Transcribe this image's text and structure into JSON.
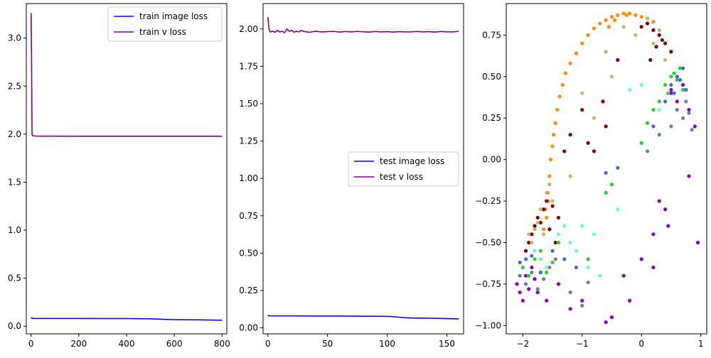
{
  "chart_data": [
    {
      "type": "line",
      "title": "",
      "xlabel": "",
      "ylabel": "",
      "xlim": [
        -20,
        820
      ],
      "ylim": [
        -0.08,
        3.36
      ],
      "xticks": [
        0,
        200,
        400,
        600,
        800
      ],
      "xtick_labels": [
        "0",
        "200",
        "400",
        "600",
        "800"
      ],
      "yticks": [
        0.0,
        0.5,
        1.0,
        1.5,
        2.0,
        2.5,
        3.0
      ],
      "ytick_labels": [
        "0.0",
        "0.5",
        "1.0",
        "1.5",
        "2.0",
        "2.5",
        "3.0"
      ],
      "legend_position": "top-right",
      "grid": false,
      "series": [
        {
          "name": "train image loss",
          "color": "#0000ff",
          "x": [
            0,
            5,
            10,
            50,
            100,
            200,
            300,
            400,
            450,
            500,
            530,
            560,
            600,
            650,
            700,
            750,
            800
          ],
          "y": [
            0.09,
            0.082,
            0.08,
            0.08,
            0.08,
            0.08,
            0.079,
            0.079,
            0.078,
            0.077,
            0.074,
            0.07,
            0.068,
            0.067,
            0.066,
            0.064,
            0.062
          ]
        },
        {
          "name": "train v loss",
          "color": "#800080",
          "x": [
            0,
            2,
            4,
            6,
            10,
            20,
            50,
            100,
            200,
            300,
            400,
            500,
            600,
            700,
            800
          ],
          "y": [
            3.26,
            2.8,
            2.0,
            1.985,
            1.982,
            1.98,
            1.979,
            1.979,
            1.978,
            1.978,
            1.978,
            1.978,
            1.978,
            1.978,
            1.978
          ]
        }
      ]
    },
    {
      "type": "line",
      "title": "",
      "xlabel": "",
      "ylabel": "",
      "xlim": [
        -4,
        164
      ],
      "ylim": [
        -0.04,
        2.17
      ],
      "xticks": [
        0,
        50,
        100,
        150
      ],
      "xtick_labels": [
        "0",
        "50",
        "100",
        "150"
      ],
      "yticks": [
        0.0,
        0.25,
        0.5,
        0.75,
        1.0,
        1.25,
        1.5,
        1.75,
        2.0
      ],
      "ytick_labels": [
        "0.00",
        "0.25",
        "0.50",
        "0.75",
        "1.00",
        "1.25",
        "1.50",
        "1.75",
        "2.00"
      ],
      "legend_position": "center-right",
      "grid": false,
      "series": [
        {
          "name": "test image loss",
          "color": "#0000ff",
          "x": [
            0,
            1,
            5,
            20,
            40,
            60,
            80,
            100,
            105,
            110,
            115,
            120,
            130,
            140,
            150,
            160
          ],
          "y": [
            0.085,
            0.08,
            0.08,
            0.08,
            0.079,
            0.079,
            0.078,
            0.077,
            0.075,
            0.071,
            0.068,
            0.066,
            0.065,
            0.064,
            0.062,
            0.06
          ]
        },
        {
          "name": "test v loss",
          "color": "#800080",
          "x": [
            0,
            1,
            2,
            4,
            6,
            8,
            10,
            12,
            14,
            16,
            18,
            20,
            22,
            24,
            26,
            28,
            30,
            35,
            40,
            45,
            50,
            55,
            60,
            65,
            70,
            75,
            80,
            85,
            90,
            95,
            100,
            105,
            110,
            115,
            120,
            125,
            130,
            135,
            140,
            145,
            150,
            155,
            160
          ],
          "y": [
            2.08,
            2.0,
            1.98,
            1.985,
            1.978,
            1.99,
            1.98,
            1.985,
            1.975,
            2.0,
            1.985,
            1.99,
            1.978,
            1.985,
            1.98,
            1.99,
            1.983,
            1.978,
            1.985,
            1.98,
            1.982,
            1.984,
            1.979,
            1.983,
            1.98,
            1.984,
            1.981,
            1.979,
            1.983,
            1.98,
            1.982,
            1.979,
            1.982,
            1.98,
            1.981,
            1.983,
            1.98,
            1.982,
            1.979,
            1.983,
            1.981,
            1.98,
            1.984
          ]
        }
      ]
    },
    {
      "type": "scatter",
      "title": "",
      "xlabel": "",
      "ylabel": "",
      "xlim": [
        -2.28,
        1.1
      ],
      "ylim": [
        -1.05,
        0.94
      ],
      "xticks": [
        -2,
        -1,
        0,
        1
      ],
      "xtick_labels": [
        "−2",
        "−1",
        "0",
        "1"
      ],
      "yticks": [
        -1.0,
        -0.75,
        -0.5,
        -0.25,
        0.0,
        0.25,
        0.5,
        0.75
      ],
      "ytick_labels": [
        "−1.00",
        "−0.75",
        "−0.50",
        "−0.25",
        "0.00",
        "0.25",
        "0.50",
        "0.75"
      ],
      "grid": false,
      "series": [
        {
          "color": "#ff8c00",
          "x": [
            -1.6,
            -1.62,
            -1.58,
            -1.55,
            -1.53,
            -1.5,
            -1.48,
            -1.45,
            -1.42,
            -1.38,
            -1.33,
            -1.28,
            -1.2,
            -1.1,
            -1.0,
            -0.9,
            -0.8,
            -0.7,
            -0.6,
            -0.5,
            -0.4,
            -0.3,
            -0.2,
            -0.1,
            0.0,
            0.1,
            0.2,
            -1.65,
            -1.57,
            -0.45,
            -0.55,
            -0.25
          ],
          "y": [
            -0.35,
            -0.3,
            -0.2,
            -0.1,
            0.0,
            0.08,
            0.15,
            0.22,
            0.3,
            0.38,
            0.45,
            0.52,
            0.58,
            0.64,
            0.7,
            0.75,
            0.79,
            0.82,
            0.84,
            0.86,
            0.87,
            0.88,
            0.88,
            0.87,
            0.86,
            0.85,
            0.83,
            -0.42,
            -0.25,
            0.84,
            0.8,
            0.87
          ]
        },
        {
          "color": "#800000",
          "x": [
            -1.95,
            -1.9,
            -1.85,
            -1.8,
            -1.75,
            -1.7,
            -1.65,
            -1.6,
            -1.5,
            -1.4,
            -1.2,
            -1.0,
            -0.8,
            -0.6,
            -0.4,
            0.0,
            0.1,
            0.2,
            0.3,
            0.4,
            0.5,
            0.35,
            0.25,
            0.15,
            -1.3,
            -0.9,
            -0.65,
            -1.55,
            -1.45
          ],
          "y": [
            -0.55,
            -0.5,
            -0.45,
            -0.4,
            -0.35,
            -0.38,
            -0.3,
            -0.25,
            -0.28,
            -0.35,
            0.15,
            0.3,
            0.05,
            0.2,
            0.6,
            0.8,
            0.82,
            0.78,
            0.75,
            0.7,
            0.65,
            0.72,
            0.68,
            0.6,
            0.05,
            0.1,
            0.35,
            -0.42,
            -0.5
          ]
        },
        {
          "color": "#bdb76b",
          "x": [
            -1.9,
            -1.85,
            -1.8,
            -1.75,
            -1.7,
            -1.65,
            -1.6,
            -1.55,
            -1.2,
            -1.0,
            -0.8,
            -0.6,
            -0.3,
            -0.1,
            0.1,
            0.2,
            0.3,
            0.4,
            -1.5,
            -0.5
          ],
          "y": [
            -0.45,
            -0.5,
            -0.42,
            -0.38,
            -0.3,
            -0.45,
            -0.2,
            -0.15,
            -0.1,
            0.4,
            0.25,
            0.65,
            0.8,
            0.75,
            0.85,
            0.7,
            0.78,
            0.6,
            -0.25,
            0.5
          ]
        },
        {
          "color": "#8a00c0",
          "x": [
            -2.1,
            -2.05,
            -2.0,
            -1.95,
            -1.9,
            -1.85,
            -1.8,
            -1.75,
            -1.7,
            -1.6,
            -1.4,
            -1.2,
            -1.0,
            -0.6,
            -0.3,
            -0.2,
            0.0,
            0.2,
            0.4,
            0.5,
            0.6,
            0.7,
            0.8,
            0.9,
            0.95,
            0.6,
            0.5,
            0.3,
            0.8,
            -0.5,
            0.2,
            0.45
          ],
          "y": [
            -0.75,
            -0.8,
            -0.85,
            -0.7,
            -0.78,
            -0.65,
            -0.72,
            -0.8,
            -0.68,
            -0.85,
            -0.75,
            -0.9,
            -0.85,
            -0.98,
            -0.7,
            -0.85,
            -0.6,
            -0.45,
            -0.3,
            0.4,
            0.35,
            0.45,
            0.3,
            0.2,
            -0.5,
            0.5,
            0.42,
            -0.25,
            -0.1,
            -0.95,
            -0.65,
            -0.4
          ]
        },
        {
          "color": "#2ecc2e",
          "x": [
            -2.0,
            -1.9,
            -1.8,
            -1.7,
            -1.6,
            -1.5,
            -1.4,
            -0.9,
            -0.5,
            0.0,
            0.2,
            0.3,
            0.4,
            0.45,
            0.5,
            0.55,
            0.6,
            0.65,
            0.7,
            -0.6,
            0.1
          ],
          "y": [
            -0.65,
            -0.7,
            -0.6,
            -0.55,
            -0.68,
            -0.62,
            -0.5,
            -0.6,
            -0.15,
            0.1,
            0.3,
            0.35,
            0.45,
            0.4,
            0.5,
            0.52,
            0.48,
            0.55,
            0.42,
            -0.2,
            0.22
          ]
        },
        {
          "color": "#4169e1",
          "x": [
            -2.05,
            -1.95,
            -1.85,
            -1.7,
            -1.5,
            -1.3,
            -1.1,
            -0.6,
            -0.4,
            0.2,
            0.4,
            0.5,
            0.55,
            0.6,
            0.65,
            0.7,
            0.75
          ],
          "y": [
            -0.62,
            -0.6,
            -0.58,
            -0.68,
            -0.55,
            -0.6,
            -0.65,
            -0.08,
            -0.05,
            0.2,
            0.35,
            0.45,
            0.4,
            0.5,
            0.48,
            0.55,
            0.42
          ]
        },
        {
          "color": "#708090",
          "x": [
            -2.05,
            -1.95,
            -1.85,
            -1.75,
            -1.65,
            -1.55,
            -1.45,
            -1.2,
            -1.0,
            -0.9,
            0.1,
            0.3,
            0.5,
            0.6,
            0.7,
            0.75,
            0.8,
            0.85
          ],
          "y": [
            -0.7,
            -0.75,
            -0.68,
            -0.78,
            -0.72,
            -0.65,
            -0.6,
            -0.8,
            -0.88,
            -0.74,
            0.05,
            0.15,
            0.2,
            0.3,
            0.25,
            0.35,
            0.28,
            0.18
          ]
        },
        {
          "color": "#66ffcc",
          "x": [
            -1.8,
            -1.7,
            -1.6,
            -1.4,
            -1.3,
            -1.2,
            -1.1,
            -0.9,
            -0.7,
            -0.4,
            -0.2,
            0.0,
            0.3,
            -1.0,
            -0.8
          ],
          "y": [
            -0.55,
            -0.6,
            -0.65,
            -0.45,
            -0.4,
            -0.5,
            -0.55,
            -0.65,
            -0.7,
            -0.3,
            0.42,
            0.45,
            0.3,
            -0.4,
            -0.45
          ]
        }
      ]
    }
  ]
}
